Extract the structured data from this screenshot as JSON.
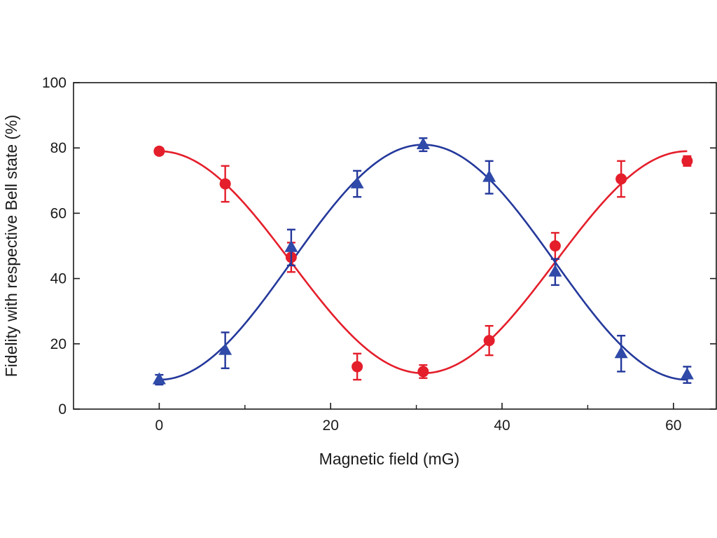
{
  "chart_data": {
    "type": "scatter",
    "title": "",
    "xlabel": "Magnetic field (mG)",
    "ylabel": "Fidelity with respective Bell state (%)",
    "xlim": [
      -10,
      65
    ],
    "ylim": [
      0,
      100
    ],
    "x_ticks": [
      0,
      20,
      40,
      60
    ],
    "x_minor_ticks": [
      10,
      30,
      50
    ],
    "y_ticks": [
      0,
      20,
      40,
      60,
      80,
      100
    ],
    "grid": false,
    "legend": "none",
    "series": [
      {
        "marker": "circle",
        "color": "#e41e2b",
        "points": [
          {
            "x": 0,
            "y": 79,
            "err": 1
          },
          {
            "x": 7.7,
            "y": 69,
            "err": 5.5
          },
          {
            "x": 15.4,
            "y": 46.5,
            "err": 4.5
          },
          {
            "x": 23.1,
            "y": 13,
            "err": 4
          },
          {
            "x": 30.8,
            "y": 11.5,
            "err": 2
          },
          {
            "x": 38.5,
            "y": 21,
            "err": 4.5
          },
          {
            "x": 46.2,
            "y": 50,
            "err": 4
          },
          {
            "x": 53.9,
            "y": 70.5,
            "err": 5.5
          },
          {
            "x": 61.6,
            "y": 76,
            "err": 1.5
          }
        ],
        "fit": {
          "model": "cosine",
          "mean": 45,
          "amplitude": 34,
          "period": 61.6,
          "phase_x": 0
        }
      },
      {
        "marker": "triangle",
        "color": "#24389b",
        "points": [
          {
            "x": 0,
            "y": 9,
            "err": 1.5
          },
          {
            "x": 7.7,
            "y": 18,
            "err": 5.5
          },
          {
            "x": 15.4,
            "y": 49.5,
            "err": 5.5
          },
          {
            "x": 23.1,
            "y": 69,
            "err": 4
          },
          {
            "x": 30.8,
            "y": 81,
            "err": 2
          },
          {
            "x": 38.5,
            "y": 71,
            "err": 5
          },
          {
            "x": 46.2,
            "y": 42,
            "err": 4
          },
          {
            "x": 53.9,
            "y": 17,
            "err": 5.5
          },
          {
            "x": 61.6,
            "y": 10.5,
            "err": 2.5
          }
        ],
        "fit": {
          "model": "cosine",
          "mean": 45,
          "amplitude": -36,
          "period": 61.6,
          "phase_x": 0
        }
      }
    ]
  }
}
